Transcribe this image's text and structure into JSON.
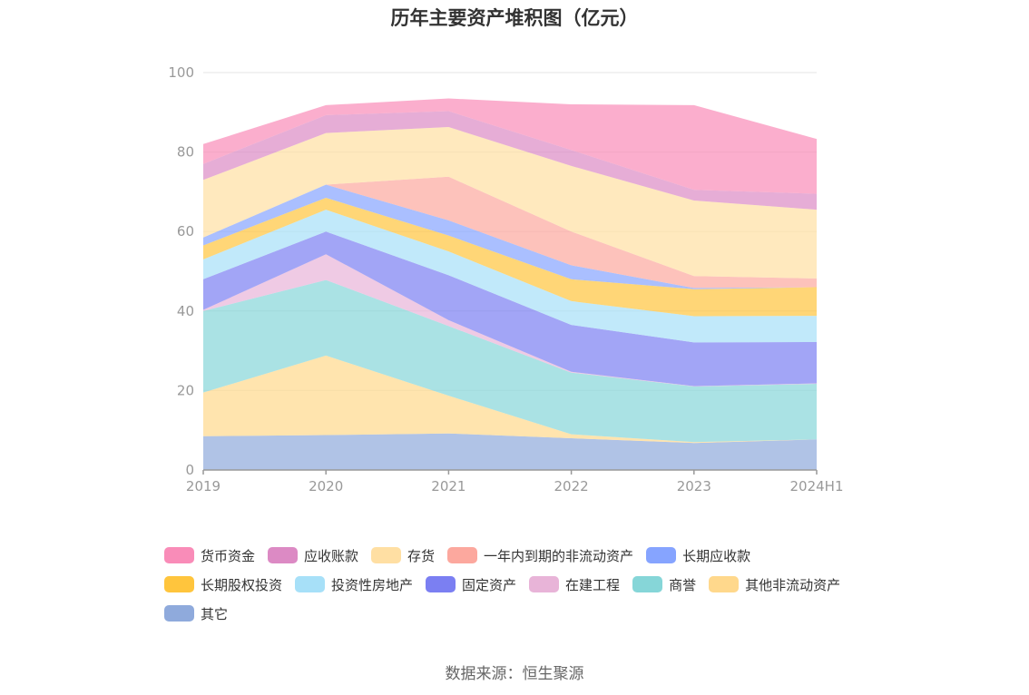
{
  "chart_data": {
    "type": "area",
    "stacked": true,
    "title": "历年主要资产堆积图（亿元）",
    "x": [
      "2019",
      "2020",
      "2021",
      "2022",
      "2023",
      "2024H1"
    ],
    "ylim": [
      0,
      100
    ],
    "yticks": [
      0,
      20,
      40,
      60,
      80,
      100
    ],
    "grid": true,
    "legend_position": "bottom",
    "series": [
      {
        "name": "其它",
        "color": "#8FAADC",
        "values": [
          8.5,
          8.8,
          9.2,
          8.0,
          6.8,
          7.7
        ]
      },
      {
        "name": "其他非流动资产",
        "color": "#FFD88C",
        "values": [
          11.0,
          20.0,
          9.5,
          1.0,
          0.2,
          0.0
        ]
      },
      {
        "name": "商誉",
        "color": "#86D6D8",
        "values": [
          20.5,
          19.0,
          17.5,
          15.5,
          14.0,
          14.0
        ]
      },
      {
        "name": "在建工程",
        "color": "#E8B4D8",
        "values": [
          0.3,
          6.5,
          1.5,
          0.2,
          0.1,
          0.1
        ]
      },
      {
        "name": "固定资产",
        "color": "#7B7FF2",
        "values": [
          7.7,
          5.7,
          11.3,
          11.8,
          11.0,
          10.4
        ]
      },
      {
        "name": "投资性房地产",
        "color": "#A7E0F8",
        "values": [
          5.0,
          5.5,
          6.0,
          6.0,
          6.6,
          6.6
        ]
      },
      {
        "name": "长期股权投资",
        "color": "#FFC53D",
        "values": [
          3.5,
          3.0,
          4.0,
          5.5,
          6.8,
          7.2
        ]
      },
      {
        "name": "长期应收款",
        "color": "#86A4FF",
        "values": [
          2.0,
          3.3,
          3.8,
          3.5,
          0.3,
          0.0
        ]
      },
      {
        "name": "一年内到期的非流动资产",
        "color": "#FCA89E",
        "values": [
          0.0,
          0.0,
          11.0,
          8.5,
          3.0,
          2.2
        ]
      },
      {
        "name": "存货",
        "color": "#FFDFA3",
        "values": [
          14.5,
          13.0,
          12.5,
          16.5,
          19.0,
          17.3
        ]
      },
      {
        "name": "应收账款",
        "color": "#DC8AC4",
        "values": [
          4.0,
          4.5,
          4.0,
          4.0,
          2.7,
          4.0
        ]
      },
      {
        "name": "货币资金",
        "color": "#F98CB8",
        "values": [
          5.0,
          2.5,
          3.2,
          11.5,
          21.3,
          13.8
        ]
      }
    ],
    "legend_order": [
      "货币资金",
      "应收账款",
      "存货",
      "一年内到期的非流动资产",
      "长期应收款",
      "长期股权投资",
      "投资性房地产",
      "固定资产",
      "在建工程",
      "商誉",
      "其他非流动资产",
      "其它"
    ]
  },
  "source": "数据来源：恒生聚源"
}
